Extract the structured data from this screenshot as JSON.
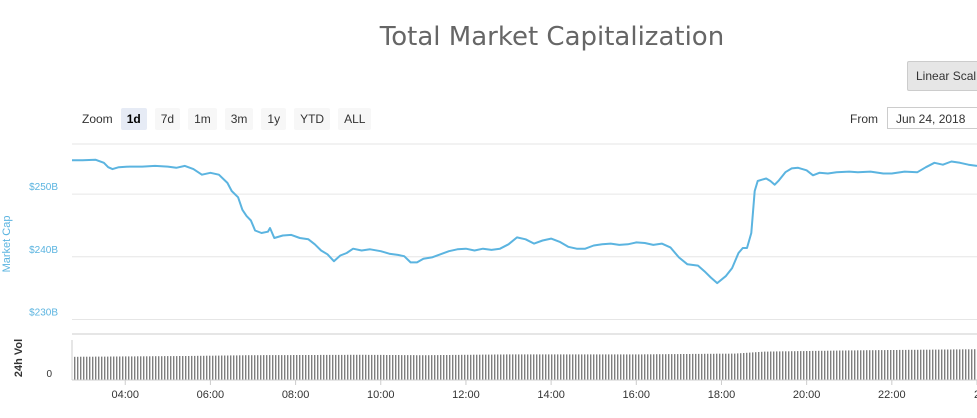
{
  "title": "Total Market Capitalization",
  "scale_button": "Linear Scal",
  "zoom": {
    "label": "Zoom",
    "buttons": [
      "1d",
      "7d",
      "1m",
      "3m",
      "1y",
      "YTD",
      "ALL"
    ],
    "active": "1d"
  },
  "range": {
    "from_label": "From",
    "from_value": "Jun 24, 2018"
  },
  "colors": {
    "line": "#5bb4e0",
    "volume": "#7f7f7f",
    "axis_label": "#5bb4e0",
    "grid": "#e6e6e6"
  },
  "chart_data": {
    "type": "line",
    "title": "Total Market Capitalization",
    "ylabel": "Market Cap",
    "y_ticks": [
      "$230B",
      "$240B",
      "$250B"
    ],
    "ylim": [
      228,
      258
    ],
    "x_ticks": [
      "04:00",
      "06:00",
      "08:00",
      "10:00",
      "12:00",
      "14:00",
      "16:00",
      "18:00",
      "20:00",
      "22:00",
      "2"
    ],
    "x_tick_hours": [
      4,
      6,
      8,
      10,
      12,
      14,
      16,
      18,
      20,
      22,
      24
    ],
    "xlim": [
      2.75,
      24.0
    ],
    "grid": true,
    "series": [
      {
        "values": [
          [
            2.75,
            255.4
          ],
          [
            3.0,
            255.4
          ],
          [
            3.3,
            255.5
          ],
          [
            3.5,
            255.0
          ],
          [
            3.6,
            254.3
          ],
          [
            3.7,
            254.0
          ],
          [
            3.85,
            254.3
          ],
          [
            4.1,
            254.4
          ],
          [
            4.4,
            254.4
          ],
          [
            4.7,
            254.5
          ],
          [
            5.0,
            254.4
          ],
          [
            5.2,
            254.2
          ],
          [
            5.4,
            254.5
          ],
          [
            5.6,
            254.0
          ],
          [
            5.8,
            253.1
          ],
          [
            6.0,
            253.4
          ],
          [
            6.2,
            253.1
          ],
          [
            6.4,
            251.8
          ],
          [
            6.5,
            250.5
          ],
          [
            6.65,
            249.5
          ],
          [
            6.75,
            247.5
          ],
          [
            6.85,
            246.5
          ],
          [
            6.95,
            245.8
          ],
          [
            7.05,
            244.2
          ],
          [
            7.2,
            243.8
          ],
          [
            7.35,
            244.0
          ],
          [
            7.4,
            244.6
          ],
          [
            7.5,
            243.0
          ],
          [
            7.7,
            243.4
          ],
          [
            7.9,
            243.5
          ],
          [
            8.1,
            243.0
          ],
          [
            8.3,
            242.8
          ],
          [
            8.45,
            242.0
          ],
          [
            8.6,
            241.0
          ],
          [
            8.75,
            240.4
          ],
          [
            8.9,
            239.3
          ],
          [
            9.05,
            240.2
          ],
          [
            9.2,
            240.6
          ],
          [
            9.35,
            241.3
          ],
          [
            9.55,
            241.0
          ],
          [
            9.75,
            241.2
          ],
          [
            10.0,
            240.9
          ],
          [
            10.2,
            240.5
          ],
          [
            10.4,
            240.3
          ],
          [
            10.55,
            240.1
          ],
          [
            10.7,
            239.1
          ],
          [
            10.85,
            239.1
          ],
          [
            11.0,
            239.7
          ],
          [
            11.2,
            239.9
          ],
          [
            11.4,
            240.4
          ],
          [
            11.6,
            240.9
          ],
          [
            11.8,
            241.2
          ],
          [
            12.0,
            241.3
          ],
          [
            12.2,
            241.0
          ],
          [
            12.4,
            241.3
          ],
          [
            12.6,
            241.1
          ],
          [
            12.8,
            241.3
          ],
          [
            13.0,
            242.0
          ],
          [
            13.2,
            243.1
          ],
          [
            13.4,
            242.8
          ],
          [
            13.6,
            242.1
          ],
          [
            13.8,
            242.6
          ],
          [
            14.0,
            242.9
          ],
          [
            14.2,
            242.4
          ],
          [
            14.4,
            241.6
          ],
          [
            14.6,
            241.3
          ],
          [
            14.8,
            241.3
          ],
          [
            15.0,
            241.8
          ],
          [
            15.2,
            242.0
          ],
          [
            15.4,
            242.1
          ],
          [
            15.6,
            241.9
          ],
          [
            15.8,
            242.0
          ],
          [
            16.0,
            242.3
          ],
          [
            16.2,
            242.2
          ],
          [
            16.4,
            241.9
          ],
          [
            16.6,
            242.1
          ],
          [
            16.8,
            241.5
          ],
          [
            17.0,
            239.9
          ],
          [
            17.2,
            238.8
          ],
          [
            17.45,
            238.6
          ],
          [
            17.6,
            237.7
          ],
          [
            17.75,
            236.7
          ],
          [
            17.9,
            235.8
          ],
          [
            18.1,
            236.9
          ],
          [
            18.25,
            238.2
          ],
          [
            18.4,
            240.6
          ],
          [
            18.5,
            241.4
          ],
          [
            18.6,
            241.4
          ],
          [
            18.7,
            243.8
          ],
          [
            18.78,
            250.5
          ],
          [
            18.85,
            252.1
          ],
          [
            18.95,
            252.3
          ],
          [
            19.05,
            252.5
          ],
          [
            19.15,
            252.1
          ],
          [
            19.25,
            251.5
          ],
          [
            19.35,
            252.2
          ],
          [
            19.5,
            253.5
          ],
          [
            19.65,
            254.1
          ],
          [
            19.8,
            254.2
          ],
          [
            20.0,
            253.8
          ],
          [
            20.15,
            253.0
          ],
          [
            20.3,
            253.4
          ],
          [
            20.5,
            253.3
          ],
          [
            20.7,
            253.5
          ],
          [
            21.0,
            253.6
          ],
          [
            21.2,
            253.5
          ],
          [
            21.5,
            253.6
          ],
          [
            21.8,
            253.3
          ],
          [
            22.0,
            253.3
          ],
          [
            22.3,
            253.6
          ],
          [
            22.6,
            253.5
          ],
          [
            22.8,
            254.3
          ],
          [
            23.0,
            255.0
          ],
          [
            23.2,
            254.7
          ],
          [
            23.4,
            255.2
          ],
          [
            23.6,
            255.0
          ],
          [
            23.8,
            254.7
          ],
          [
            24.0,
            254.5
          ]
        ]
      }
    ],
    "volume": {
      "label": "24h Vol",
      "y_ticks": [
        "0"
      ],
      "approx_levels": [
        [
          2.75,
          0.58
        ],
        [
          5.4,
          0.6
        ],
        [
          6.9,
          0.62
        ],
        [
          9.5,
          0.63
        ],
        [
          11.0,
          0.62
        ],
        [
          13.0,
          0.64
        ],
        [
          16.0,
          0.64
        ],
        [
          18.3,
          0.66
        ],
        [
          19.0,
          0.71
        ],
        [
          21.0,
          0.74
        ],
        [
          23.0,
          0.76
        ],
        [
          24.0,
          0.77
        ]
      ]
    }
  }
}
